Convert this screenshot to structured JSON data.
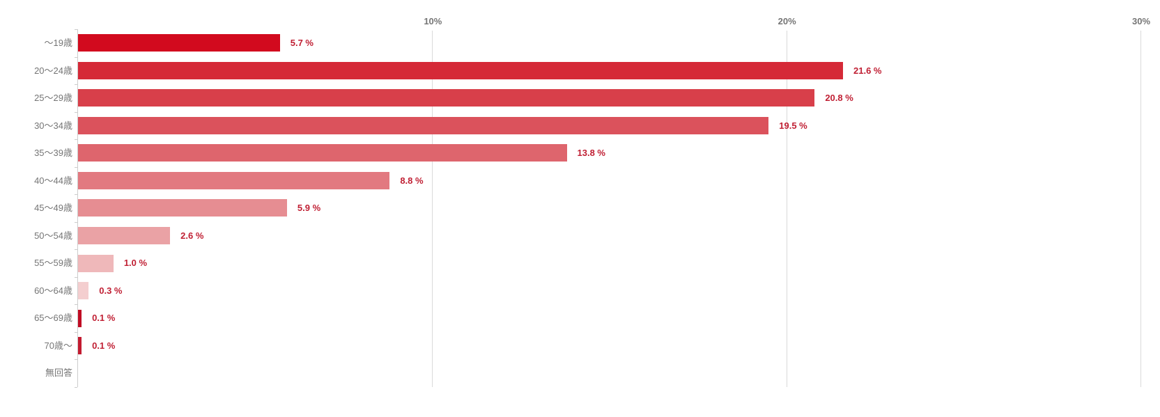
{
  "chart_data": {
    "type": "bar",
    "orientation": "horizontal",
    "title": "",
    "xlabel": "",
    "ylabel": "",
    "categories": [
      "～19歳",
      "20～24歳",
      "25～29歳",
      "30～34歳",
      "35～39歳",
      "40～44歳",
      "45～49歳",
      "50～54歳",
      "55～59歳",
      "60～64歳",
      "65～69歳",
      "70歳～",
      "無回答"
    ],
    "values": [
      5.7,
      21.6,
      20.8,
      19.5,
      13.8,
      8.8,
      5.9,
      2.6,
      1.0,
      0.3,
      0.1,
      0.1,
      null
    ],
    "value_labels": [
      "5.7 %",
      "21.6 %",
      "20.8 %",
      "19.5 %",
      "13.8 %",
      "8.8 %",
      "5.9 %",
      "2.6 %",
      "1.0 %",
      "0.3 %",
      "0.1 %",
      "0.1 %",
      ""
    ],
    "bar_colors": [
      "#d20a1e",
      "#d52937",
      "#d83f4a",
      "#db525c",
      "#de656d",
      "#e27980",
      "#e68d92",
      "#eaa2a5",
      "#efb8ba",
      "#f4cecf",
      "#c00c24",
      "#c31b30",
      null
    ],
    "x_axis": {
      "ticks": [
        "10%",
        "20%",
        "30%"
      ],
      "tick_values": [
        10,
        20,
        30
      ],
      "min": 0,
      "max": 30
    },
    "grid": true,
    "legend": "none"
  },
  "colors": {
    "background": "#ffffff",
    "value_label": "#c01f33",
    "category_label": "#757575",
    "axis_tick_label": "#757575",
    "gridline": "#d9d9d9",
    "axis_line": "#cccccc"
  }
}
